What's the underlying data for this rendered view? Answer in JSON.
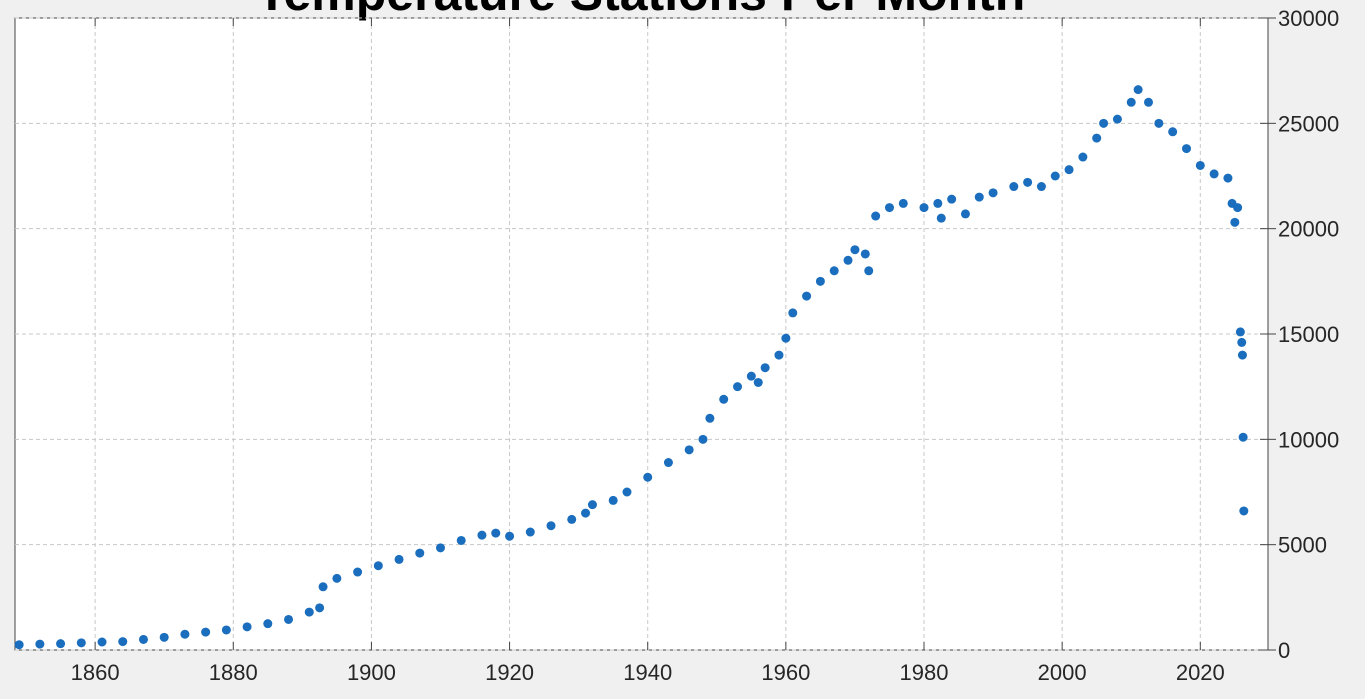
{
  "chart_data": {
    "type": "scatter",
    "title": "Temperature Stations Per Month",
    "x": [
      1849,
      1852,
      1855,
      1858,
      1861,
      1864,
      1867,
      1870,
      1873,
      1876,
      1879,
      1882,
      1885,
      1888,
      1891,
      1892.5,
      1893,
      1895,
      1898,
      1901,
      1904,
      1907,
      1910,
      1913,
      1916,
      1918,
      1920,
      1923,
      1926,
      1929,
      1931,
      1932,
      1935,
      1937,
      1940,
      1943,
      1946,
      1948,
      1949,
      1951,
      1953,
      1955,
      1956,
      1957,
      1959,
      1960,
      1961,
      1963,
      1965,
      1967,
      1969,
      1970,
      1971.5,
      1972,
      1973,
      1975,
      1977,
      1980,
      1982,
      1982.5,
      1984,
      1986,
      1988,
      1990,
      1993,
      1995,
      1997,
      1999,
      2001,
      2003,
      2005,
      2006,
      2008,
      2010,
      2011,
      2012.5,
      2014,
      2016,
      2018,
      2020,
      2022,
      2024,
      2024.6,
      2025,
      2025.4,
      2025.8,
      2026,
      2026.1,
      2026.2,
      2026.3
    ],
    "values": [
      250,
      280,
      300,
      340,
      380,
      400,
      500,
      600,
      750,
      850,
      950,
      1100,
      1250,
      1450,
      1800,
      2000,
      3000,
      3400,
      3700,
      4000,
      4300,
      4600,
      4850,
      5200,
      5450,
      5550,
      5400,
      5600,
      5900,
      6200,
      6500,
      6900,
      7100,
      7500,
      8200,
      8900,
      9500,
      10000,
      11000,
      11900,
      12500,
      13000,
      12700,
      13400,
      14000,
      14800,
      16000,
      16800,
      17500,
      18000,
      18500,
      19000,
      18800,
      18000,
      20600,
      21000,
      21200,
      21000,
      21200,
      20500,
      21400,
      20700,
      21500,
      21700,
      22000,
      22200,
      22000,
      22500,
      22800,
      23400,
      24300,
      25000,
      25200,
      26000,
      26600,
      26000,
      25000,
      24600,
      23800,
      23000,
      22600,
      22400,
      21200,
      20300,
      21000,
      15100,
      14600,
      14000,
      10100,
      6600
    ],
    "color": "#1a6ebd",
    "xlim": [
      1848.4,
      2029.8
    ],
    "xticks": [
      1860,
      1880,
      1900,
      1920,
      1940,
      1960,
      1980,
      2000,
      2020
    ],
    "ylim": [
      0,
      30000
    ],
    "yticks": [
      0,
      5000,
      10000,
      15000,
      20000,
      25000,
      30000
    ],
    "grid": true
  }
}
